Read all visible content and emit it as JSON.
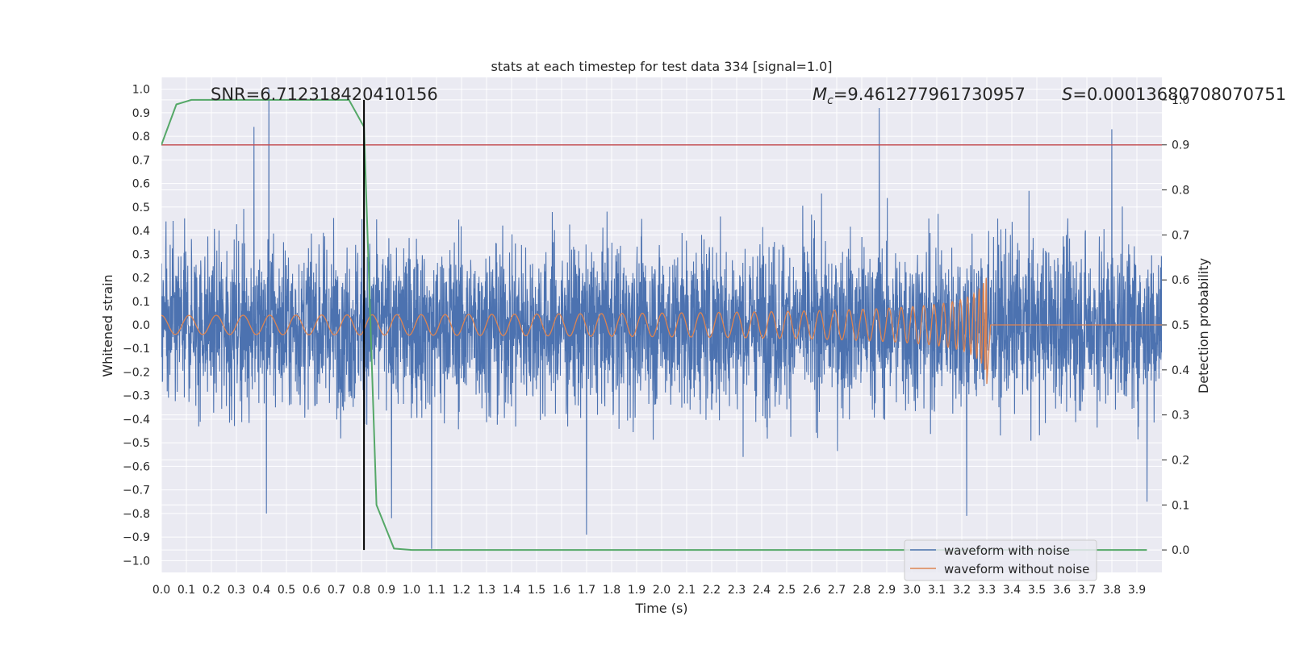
{
  "chart_data": {
    "type": "line",
    "title": "stats at each timestep for test data 334 [signal=1.0]",
    "xlabel": "Time (s)",
    "ylabel_left": "Whitened strain",
    "ylabel_right": "Detection probability",
    "xlim": [
      0.0,
      4.0
    ],
    "ylim_left": [
      -1.05,
      1.05
    ],
    "ylim_right": [
      -0.05,
      1.05
    ],
    "x_ticks": [
      "0.0",
      "0.1",
      "0.2",
      "0.3",
      "0.4",
      "0.5",
      "0.6",
      "0.7",
      "0.8",
      "0.9",
      "1.0",
      "1.1",
      "1.2",
      "1.3",
      "1.4",
      "1.5",
      "1.6",
      "1.7",
      "1.8",
      "1.9",
      "2.0",
      "2.1",
      "2.2",
      "2.3",
      "2.4",
      "2.5",
      "2.6",
      "2.7",
      "2.8",
      "2.9",
      "3.0",
      "3.1",
      "3.2",
      "3.3",
      "3.4",
      "3.5",
      "3.6",
      "3.7",
      "3.8",
      "3.9"
    ],
    "y_ticks_left": [
      "1.0",
      "0.9",
      "0.8",
      "0.7",
      "0.6",
      "0.5",
      "0.4",
      "0.3",
      "0.2",
      "0.1",
      "0.0",
      "-0.1",
      "-0.2",
      "-0.3",
      "-0.4",
      "-0.5",
      "-0.6",
      "-0.7",
      "-0.8",
      "-0.9",
      "-1.0"
    ],
    "y_ticks_right": [
      "1.0",
      "0.9",
      "0.8",
      "0.7",
      "0.6",
      "0.5",
      "0.4",
      "0.3",
      "0.2",
      "0.1",
      "0.0"
    ],
    "annotations": {
      "snr": "SNR=6.712318420410156",
      "mc": "=9.461277961730957",
      "mc_symbol": "M",
      "mc_sub": "c",
      "s": "=0.00013680708070751",
      "s_symbol": "S"
    },
    "legend": {
      "placement": "lower-right",
      "entries": [
        "waveform with noise",
        "waveform without noise"
      ]
    },
    "colors": {
      "noise": "#4c72b0",
      "clean": "#dd8452",
      "probability": "#55a868",
      "threshold": "#c44e52",
      "marker": "#000000",
      "plot_bg": "#eaeaf2",
      "grid": "#ffffff"
    },
    "series": [
      {
        "name": "waveform with noise",
        "kind": "noise",
        "x_range": [
          0.0,
          4.0
        ],
        "samples": 4096,
        "amplitude_typical": 0.4,
        "peaks": [
          {
            "x": 0.37,
            "y": 0.84
          },
          {
            "x": 0.43,
            "y": 1.0
          },
          {
            "x": 0.42,
            "y": -0.8
          },
          {
            "x": 0.92,
            "y": -0.82
          },
          {
            "x": 1.08,
            "y": -0.95
          },
          {
            "x": 1.7,
            "y": -0.89
          },
          {
            "x": 2.87,
            "y": 0.92
          },
          {
            "x": 3.22,
            "y": -0.81
          },
          {
            "x": 3.8,
            "y": 0.83
          },
          {
            "x": 3.94,
            "y": -0.75
          }
        ]
      },
      {
        "name": "waveform without noise",
        "kind": "chirp",
        "x_start": 0.0,
        "x_merge": 3.3,
        "amp_start": 0.02,
        "amp_end": 0.22,
        "flat_after": 0.0
      },
      {
        "name": "detection probability",
        "axis": "right",
        "x": [
          0.0,
          0.06,
          0.12,
          0.2,
          0.3,
          0.4,
          0.5,
          0.6,
          0.7,
          0.75,
          0.81,
          0.86,
          0.93,
          1.0,
          1.5,
          2.0,
          2.5,
          3.0,
          3.5,
          3.94
        ],
        "y": [
          0.9,
          0.99,
          1.0,
          1.0,
          1.0,
          1.0,
          1.0,
          1.0,
          1.0,
          1.0,
          0.94,
          0.1,
          0.003,
          0.0,
          0.0,
          0.0,
          0.0,
          0.0,
          0.0,
          0.0
        ]
      }
    ],
    "threshold_line": {
      "y_right": 0.9
    },
    "vertical_marker": {
      "x": 0.81,
      "y_right_from": 0.0,
      "y_right_to": 1.0
    }
  }
}
